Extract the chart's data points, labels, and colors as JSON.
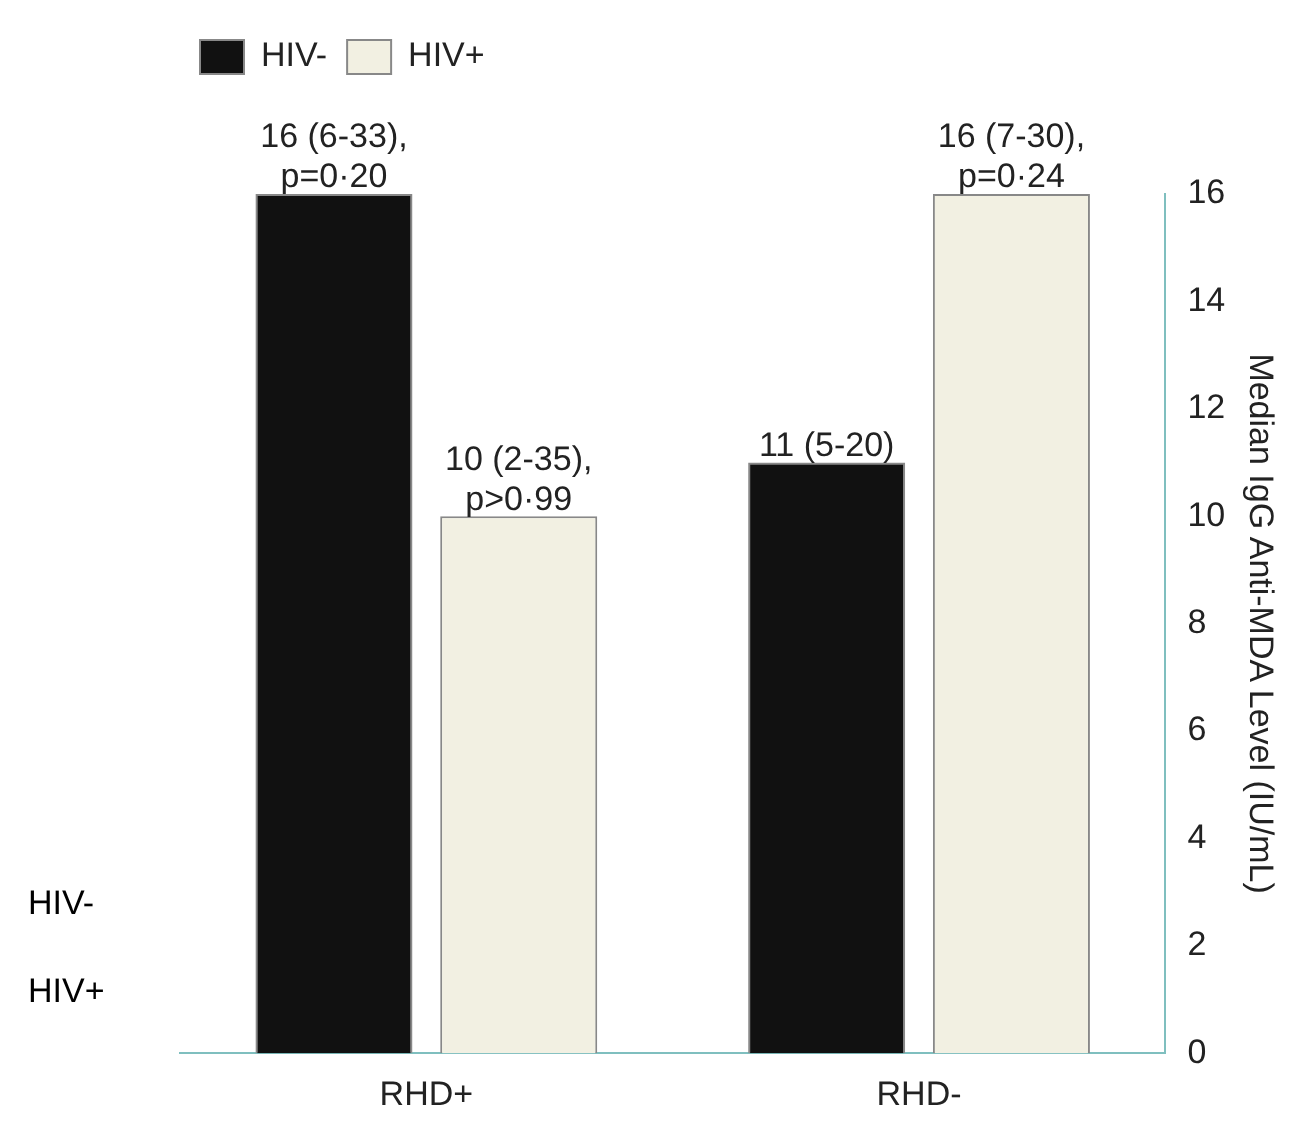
{
  "chart_data": {
    "type": "bar",
    "categories": [
      "RHD+",
      "RHD-"
    ],
    "series": [
      {
        "name": "HIV-",
        "color": "#111111",
        "values": [
          16,
          11
        ],
        "value_labels": [
          "16 (6-33), p=0·20",
          "11 (5-20)"
        ]
      },
      {
        "name": "HIV+",
        "color": "#f2f0e2",
        "values": [
          10,
          16
        ],
        "value_labels": [
          "10 (2-35), p>0·99",
          "16 (7-30), p=0·24"
        ]
      }
    ],
    "ylabel": "Median IgG Anti-MDA Level (IU/mL)",
    "ylim": [
      0,
      16
    ],
    "yticks": [
      0,
      2,
      4,
      6,
      8,
      10,
      12,
      14,
      16
    ],
    "grid": false,
    "legend": "top left",
    "annotations": [
      "HIV-",
      "HIV+"
    ]
  }
}
